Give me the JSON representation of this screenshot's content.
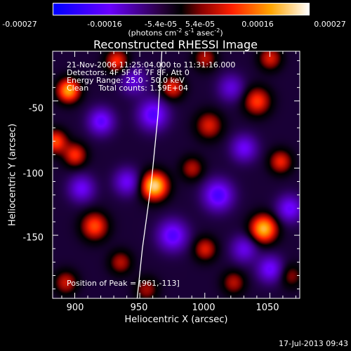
{
  "colorbar": {
    "ticks": [
      "-0.00027",
      "-0.00016",
      "-5.4e-05",
      "5.4e-05",
      "0.00016",
      "0.00027"
    ],
    "units_prefix": "(photons cm",
    "units_exp1": "-2",
    "units_mid1": " s",
    "units_exp2": "-1",
    "units_mid2": " asec",
    "units_exp3": "-2",
    "units_suffix": ")",
    "colors": [
      "#0000ff",
      "#7a00ff",
      "#000000",
      "#ff0000",
      "#ffa500",
      "#ffffff"
    ]
  },
  "chart_data": {
    "type": "heatmap",
    "title": "Reconstructed RHESSI Image",
    "xlabel": "Heliocentric X (arcsec)",
    "ylabel": "Heliocentric Y (arcsec)",
    "xlim": [
      883,
      1073
    ],
    "ylim": [
      -197,
      -13
    ],
    "xticks": [
      "900",
      "950",
      "1000",
      "1050"
    ],
    "yticks": [
      "-50",
      "-100",
      "-150"
    ],
    "zlim": [
      -0.00027,
      0.00027
    ],
    "peak": [
      961,
      -113
    ],
    "annotations": [
      "21-Nov-2006 11:25:04.000 to 11:31:16.000",
      "Detectors: 4F 5F 6F 7F 8F, Att 0",
      "Energy Range: 25.0 - 50.0 keV",
      "Clean    Total counts: 1.59E+04"
    ],
    "peak_label": "Position of Peak = [961,-113]",
    "sources": [
      {
        "x": 961,
        "y": -113,
        "v": 0.00027,
        "s": 7
      },
      {
        "x": 895,
        "y": -42,
        "v": 0.00022,
        "s": 6
      },
      {
        "x": 932,
        "y": -20,
        "v": 0.00014,
        "s": 6
      },
      {
        "x": 975,
        "y": -40,
        "v": 0.00013,
        "s": 6
      },
      {
        "x": 1000,
        "y": -18,
        "v": 0.0001,
        "s": 6
      },
      {
        "x": 1050,
        "y": -18,
        "v": 0.00012,
        "s": 6
      },
      {
        "x": 1040,
        "y": -50,
        "v": 0.00015,
        "s": 7
      },
      {
        "x": 1058,
        "y": -95,
        "v": 0.00013,
        "s": 6
      },
      {
        "x": 885,
        "y": -80,
        "v": 0.00016,
        "s": 6
      },
      {
        "x": 900,
        "y": -90,
        "v": 0.00014,
        "s": 6
      },
      {
        "x": 1003,
        "y": -68,
        "v": 0.00012,
        "s": 7
      },
      {
        "x": 990,
        "y": -100,
        "v": 0.0001,
        "s": 6
      },
      {
        "x": 1045,
        "y": -145,
        "v": 0.00024,
        "s": 7
      },
      {
        "x": 915,
        "y": -143,
        "v": 0.00016,
        "s": 7
      },
      {
        "x": 935,
        "y": -170,
        "v": 0.0001,
        "s": 6
      },
      {
        "x": 1000,
        "y": -160,
        "v": 0.00012,
        "s": 6
      },
      {
        "x": 1022,
        "y": -185,
        "v": 0.0001,
        "s": 6
      },
      {
        "x": 893,
        "y": -185,
        "v": 0.00011,
        "s": 6
      },
      {
        "x": 955,
        "y": -190,
        "v": 9e-05,
        "s": 6
      },
      {
        "x": 1066,
        "y": -180,
        "v": 8e-05,
        "s": 6
      },
      {
        "x": 920,
        "y": -65,
        "v": -0.00014,
        "s": 7
      },
      {
        "x": 960,
        "y": -60,
        "v": -0.00015,
        "s": 8
      },
      {
        "x": 940,
        "y": -110,
        "v": -0.00012,
        "s": 7
      },
      {
        "x": 1010,
        "y": -120,
        "v": -0.00016,
        "s": 8
      },
      {
        "x": 1030,
        "y": -85,
        "v": -0.00012,
        "s": 7
      },
      {
        "x": 975,
        "y": -150,
        "v": -0.00015,
        "s": 8
      },
      {
        "x": 1065,
        "y": -130,
        "v": -0.00013,
        "s": 7
      },
      {
        "x": 1050,
        "y": -175,
        "v": -0.00013,
        "s": 7
      },
      {
        "x": 905,
        "y": -115,
        "v": -0.00012,
        "s": 7
      },
      {
        "x": 1020,
        "y": -40,
        "v": -0.0001,
        "s": 7
      },
      {
        "x": 945,
        "y": -35,
        "v": -0.0001,
        "s": 7
      },
      {
        "x": 1030,
        "y": -160,
        "v": -0.00011,
        "s": 7
      }
    ],
    "limb": [
      [
        967,
        -13
      ],
      [
        964,
        -60
      ],
      [
        959,
        -110
      ],
      [
        952,
        -160
      ],
      [
        948,
        -197
      ]
    ]
  },
  "timestamp": "17-Jul-2013 09:43"
}
